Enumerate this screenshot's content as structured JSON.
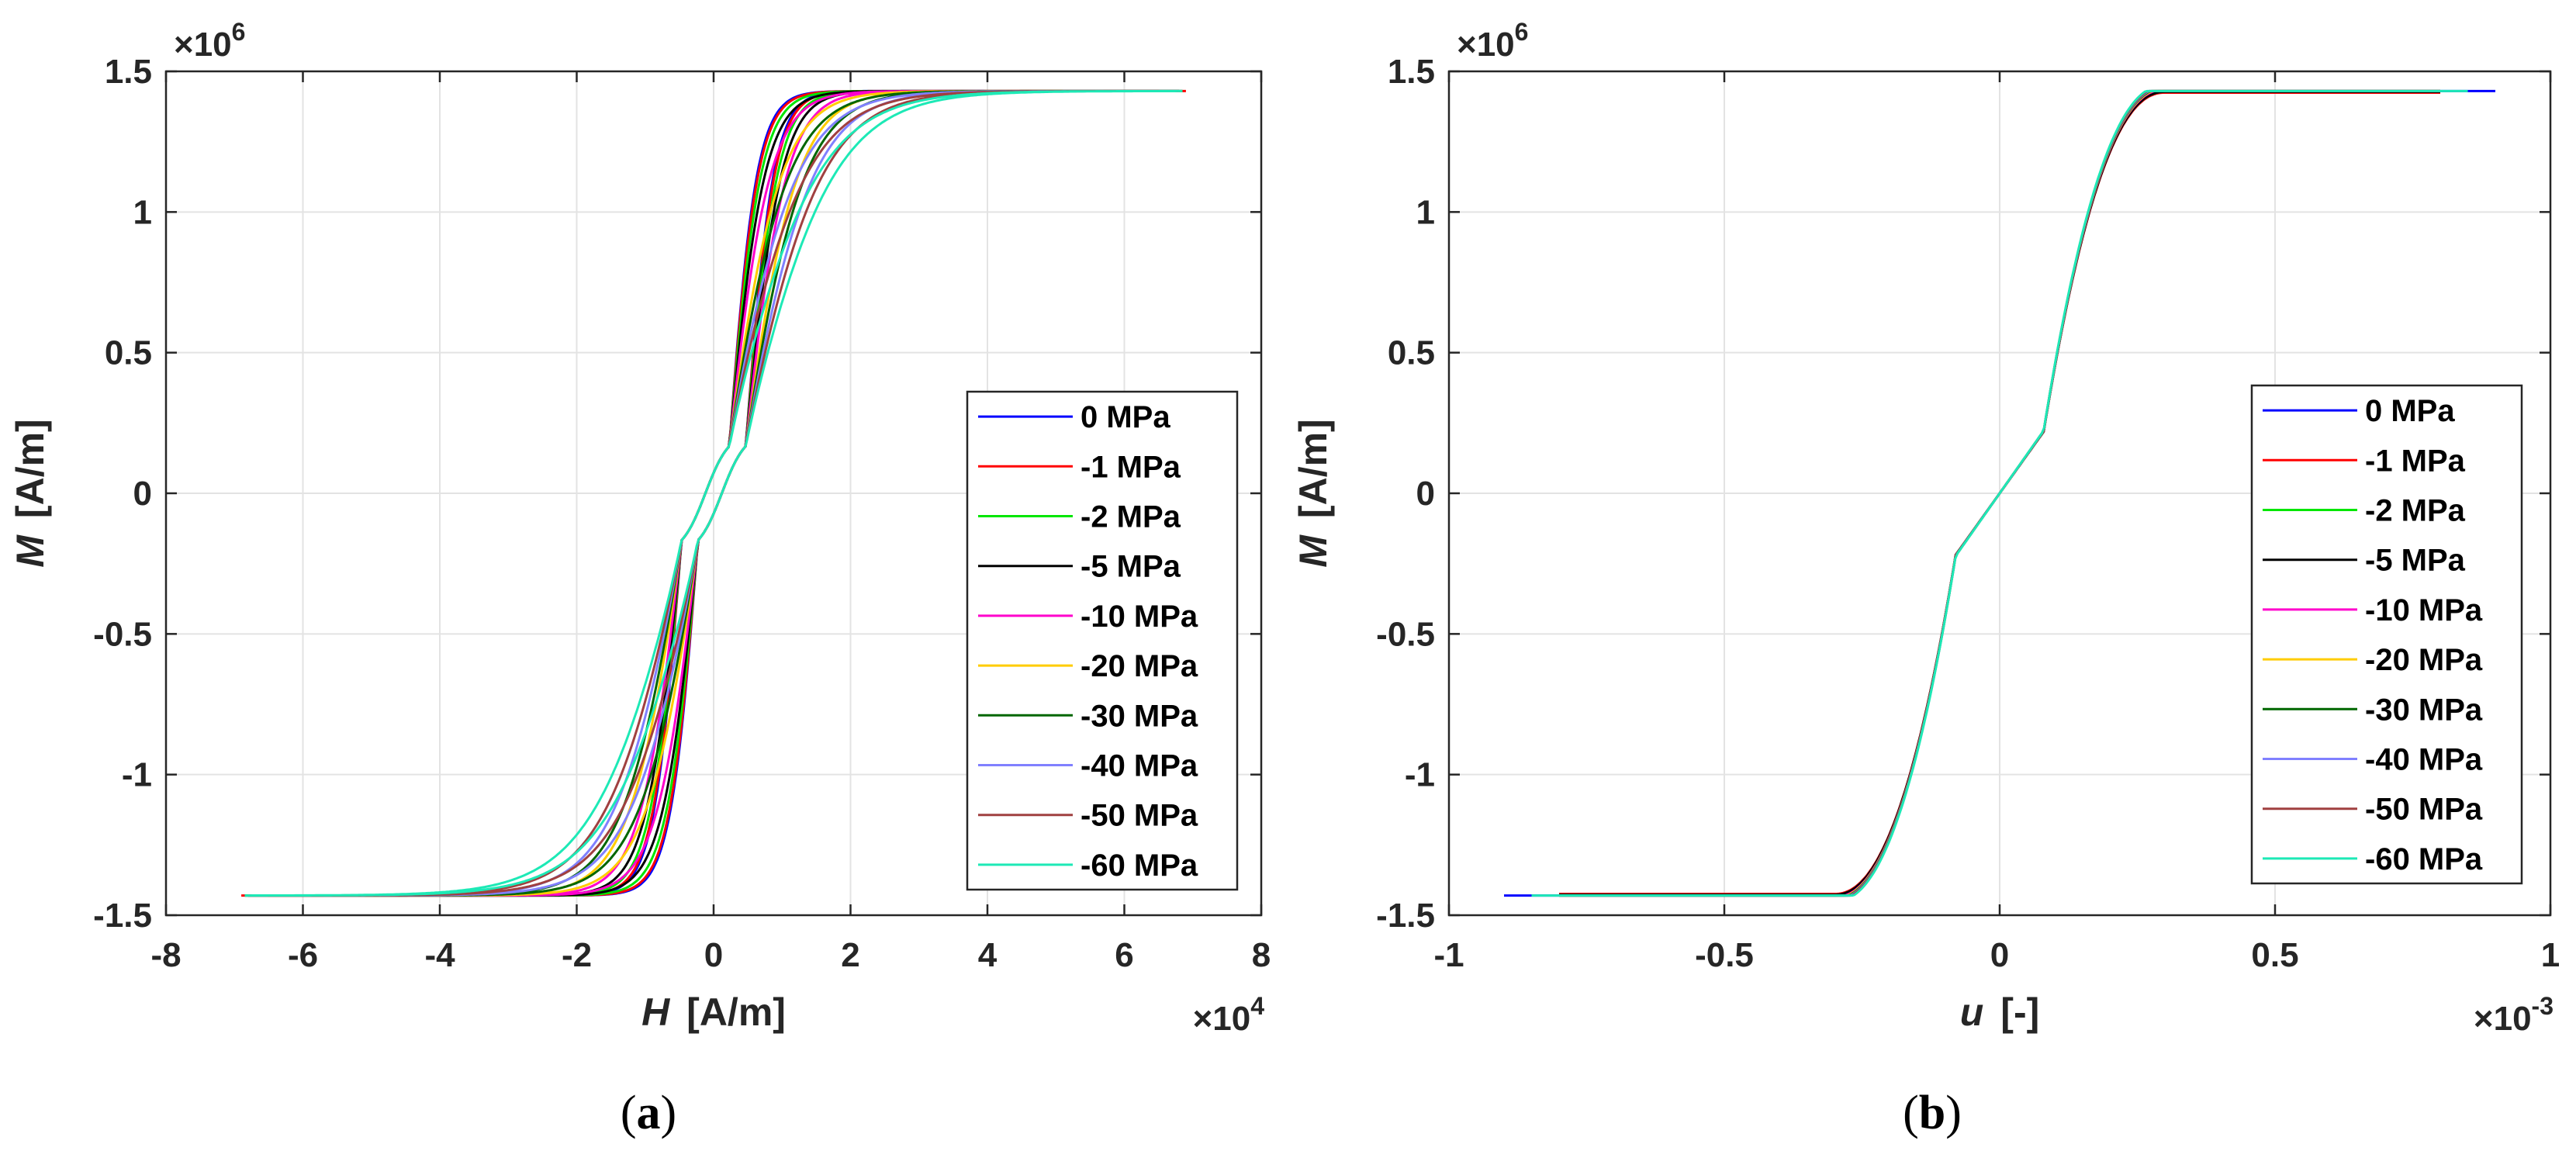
{
  "chart_data": [
    {
      "type": "line",
      "panel": "a",
      "caption": "(a)",
      "xlabel_var": "H",
      "xlabel_unit": "[A/m]",
      "ylabel_var": "M",
      "ylabel_unit": "[A/m]",
      "x_exponent": "×10^4",
      "x_exp_base": "×10",
      "x_exp_power": "4",
      "y_exponent": "×10^6",
      "y_exp_base": "×10",
      "y_exp_power": "6",
      "xlim": [
        -8,
        8
      ],
      "ylim": [
        -1.5,
        1.5
      ],
      "xticks": [
        -8,
        -6,
        -4,
        -2,
        0,
        2,
        4,
        6,
        8
      ],
      "xtick_labels": [
        "-8",
        "-6",
        "-4",
        "-2",
        "0",
        "2",
        "4",
        "6",
        "8"
      ],
      "yticks": [
        -1.5,
        -1,
        -0.5,
        0,
        0.5,
        1,
        1.5
      ],
      "ytick_labels": [
        "-1.5",
        "-1",
        "-0.5",
        "0",
        "0.5",
        "1",
        "1.5"
      ],
      "grid": true,
      "legend_position": "lower-right",
      "series": [
        {
          "name": "0 MPa",
          "color": "#0000ff",
          "knee": 0.48,
          "hc": 0.12,
          "sat": 1.43,
          "hmax": 6.85
        },
        {
          "name": "-1 MPa",
          "color": "#ff0000",
          "knee": 0.5,
          "hc": 0.12,
          "sat": 1.43,
          "hmax": 6.9
        },
        {
          "name": "-2 MPa",
          "color": "#00e600",
          "knee": 0.55,
          "hc": 0.12,
          "sat": 1.43,
          "hmax": 6.85
        },
        {
          "name": "-5 MPa",
          "color": "#000000",
          "knee": 0.62,
          "hc": 0.12,
          "sat": 1.43,
          "hmax": 6.8
        },
        {
          "name": "-10 MPa",
          "color": "#ff00cc",
          "knee": 0.72,
          "hc": 0.12,
          "sat": 1.43,
          "hmax": 6.8
        },
        {
          "name": "-20 MPa",
          "color": "#ffcc00",
          "knee": 0.92,
          "hc": 0.12,
          "sat": 1.43,
          "hmax": 6.8
        },
        {
          "name": "-30 MPa",
          "color": "#006600",
          "knee": 1.05,
          "hc": 0.12,
          "sat": 1.43,
          "hmax": 6.8
        },
        {
          "name": "-40 MPa",
          "color": "#8080ff",
          "knee": 1.2,
          "hc": 0.12,
          "sat": 1.43,
          "hmax": 6.8
        },
        {
          "name": "-50 MPa",
          "color": "#a04040",
          "knee": 1.35,
          "hc": 0.12,
          "sat": 1.43,
          "hmax": 6.8
        },
        {
          "name": "-60 MPa",
          "color": "#1de9b6",
          "knee": 1.55,
          "hc": 0.12,
          "sat": 1.43,
          "hmax": 6.85
        }
      ]
    },
    {
      "type": "line",
      "panel": "b",
      "caption": "(b)",
      "xlabel_var": "u",
      "xlabel_unit": "[-]",
      "ylabel_var": "M",
      "ylabel_unit": "[A/m]",
      "x_exponent": "×10^-3",
      "x_exp_base": "×10",
      "x_exp_power": "-3",
      "y_exponent": "×10^6",
      "y_exp_base": "×10",
      "y_exp_power": "6",
      "xlim": [
        -1,
        1
      ],
      "ylim": [
        -1.5,
        1.5
      ],
      "xticks": [
        -1,
        -0.5,
        0,
        0.5,
        1
      ],
      "xtick_labels": [
        "-1",
        "-0.5",
        "0",
        "0.5",
        "1"
      ],
      "yticks": [
        -1.5,
        -1,
        -0.5,
        0,
        0.5,
        1,
        1.5
      ],
      "ytick_labels": [
        "-1.5",
        "-1",
        "-0.5",
        "0",
        "0.5",
        "1",
        "1.5"
      ],
      "grid": true,
      "legend_position": "lower-right",
      "series": [
        {
          "name": "0 MPa",
          "color": "#0000ff",
          "spread": 0.0,
          "umax": 0.9
        },
        {
          "name": "-1 MPa",
          "color": "#ff0000",
          "spread": -0.004,
          "umax": 0.8
        },
        {
          "name": "-2 MPa",
          "color": "#00e600",
          "spread": 0.002,
          "umax": 0.8
        },
        {
          "name": "-5 MPa",
          "color": "#000000",
          "spread": -0.002,
          "umax": 0.8
        },
        {
          "name": "-10 MPa",
          "color": "#ff00cc",
          "spread": 0.004,
          "umax": 0.8
        },
        {
          "name": "-20 MPa",
          "color": "#ffcc00",
          "spread": 0.006,
          "umax": 0.8
        },
        {
          "name": "-30 MPa",
          "color": "#006600",
          "spread": 0.008,
          "umax": 0.8
        },
        {
          "name": "-40 MPa",
          "color": "#8080ff",
          "spread": 0.01,
          "umax": 0.8
        },
        {
          "name": "-50 MPa",
          "color": "#a04040",
          "spread": 0.012,
          "umax": 0.8
        },
        {
          "name": "-60 MPa",
          "color": "#1de9b6",
          "spread": 0.015,
          "umax": 0.85
        }
      ]
    }
  ]
}
